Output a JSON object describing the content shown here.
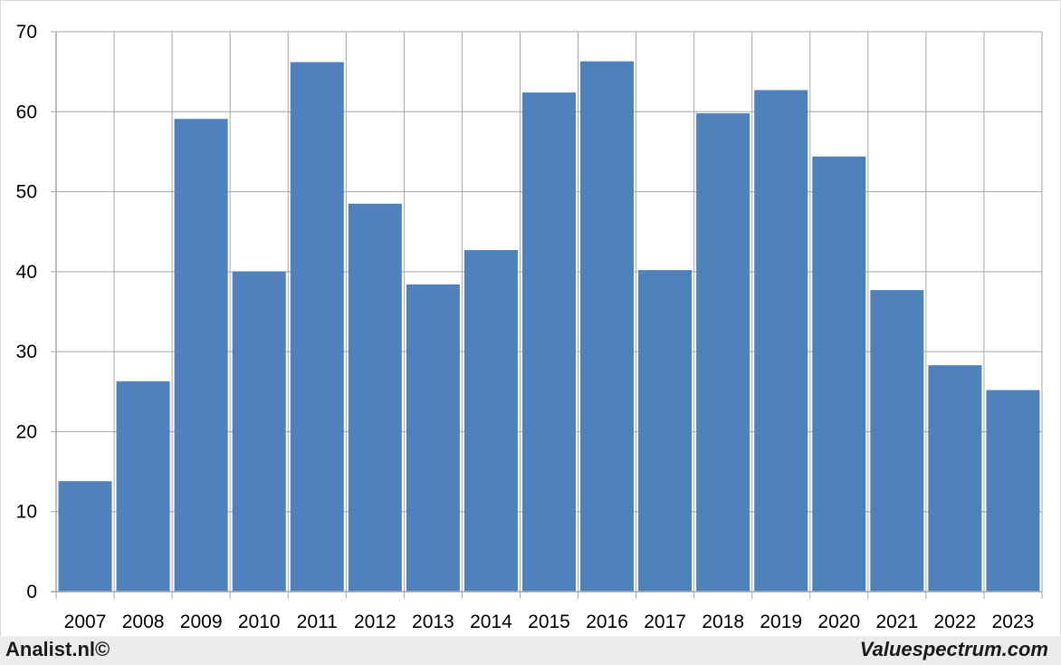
{
  "chart_data": {
    "type": "bar",
    "title": "",
    "xlabel": "",
    "ylabel": "",
    "categories": [
      "2007",
      "2008",
      "2009",
      "2010",
      "2011",
      "2012",
      "2013",
      "2014",
      "2015",
      "2016",
      "2017",
      "2018",
      "2019",
      "2020",
      "2021",
      "2022",
      "2023"
    ],
    "values": [
      13.8,
      26.3,
      59.1,
      40.0,
      66.2,
      48.5,
      38.4,
      42.7,
      62.4,
      66.3,
      40.2,
      59.8,
      62.7,
      54.4,
      37.7,
      28.3,
      25.2
    ],
    "ylim": [
      0,
      70
    ],
    "yticks": [
      "0",
      "10",
      "20",
      "30",
      "40",
      "50",
      "60",
      "70"
    ],
    "grid": true,
    "bar_color": "#4f81bd",
    "grid_color": "#a6a6a6"
  },
  "footer": {
    "left_text": "Analist.nl©",
    "right_text": "Valuespectrum.com"
  }
}
